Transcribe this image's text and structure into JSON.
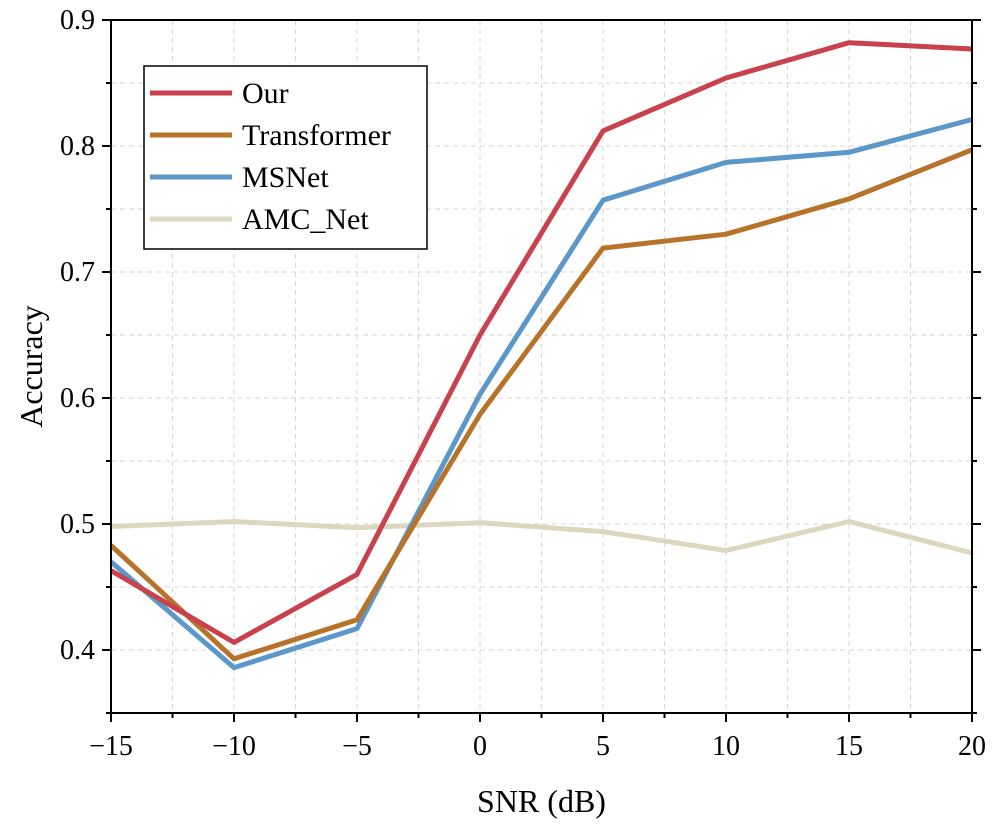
{
  "chart_data": {
    "type": "line",
    "xlabel": "SNR (dB)",
    "ylabel": "Accuracy",
    "xlim": [
      -15,
      20
    ],
    "ylim": [
      0.35,
      0.9
    ],
    "xticks": [
      -15,
      -10,
      -5,
      0,
      5,
      10,
      15,
      20
    ],
    "xtick_labels": [
      "−15",
      "−10",
      "−5",
      "0",
      "5",
      "10",
      "15",
      "20"
    ],
    "yticks": [
      0.4,
      0.5,
      0.6,
      0.7,
      0.8,
      0.9
    ],
    "ytick_labels": [
      "0.4",
      "0.5",
      "0.6",
      "0.7",
      "0.8",
      "0.9"
    ],
    "grid": true,
    "legend_position": "top-left",
    "x": [
      -15,
      -10,
      -5,
      0,
      5,
      10,
      15,
      20
    ],
    "series": [
      {
        "name": "Our",
        "color": "#c8414c",
        "values": [
          0.463,
          0.406,
          0.46,
          0.65,
          0.812,
          0.854,
          0.882,
          0.877
        ]
      },
      {
        "name": "Transformer",
        "color": "#b8732a",
        "values": [
          0.483,
          0.393,
          0.424,
          0.587,
          0.719,
          0.73,
          0.758,
          0.797
        ]
      },
      {
        "name": "MSNet",
        "color": "#5b98c9",
        "values": [
          0.47,
          0.386,
          0.417,
          0.603,
          0.757,
          0.787,
          0.795,
          0.821
        ]
      },
      {
        "name": "AMC_Net",
        "color": "#dcd8bf",
        "values": [
          0.498,
          0.502,
          0.497,
          0.501,
          0.494,
          0.479,
          0.502,
          0.477
        ]
      }
    ]
  }
}
